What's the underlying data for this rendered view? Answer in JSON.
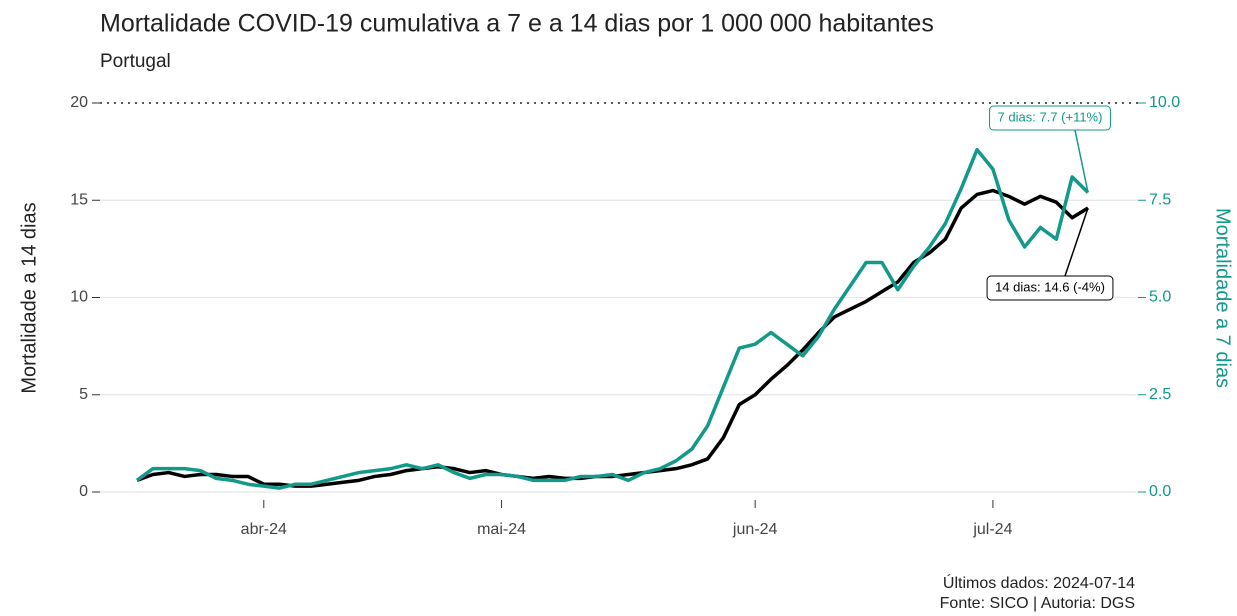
{
  "chart_data": {
    "type": "line",
    "title": "Mortalidade COVID-19 cumulativa a 7 e a 14 dias por 1 000 000 habitantes",
    "subtitle": "Portugal",
    "ylabel": "Mortalidade a 14 dias",
    "y2label": "Mortalidade a 7 dias",
    "categories": [
      null,
      null,
      null,
      null,
      null,
      null,
      null,
      null,
      "abr-24",
      null,
      null,
      null,
      null,
      null,
      null,
      null,
      null,
      null,
      null,
      null,
      null,
      null,
      null,
      "mai-24",
      null,
      null,
      null,
      null,
      null,
      null,
      null,
      null,
      null,
      null,
      null,
      null,
      null,
      null,
      null,
      "jun-24",
      null,
      null,
      null,
      null,
      null,
      null,
      null,
      null,
      null,
      null,
      null,
      null,
      null,
      null,
      "jul-24",
      null,
      null,
      null,
      null,
      null,
      null
    ],
    "series": [
      {
        "name": "14 dias",
        "color": "#000000",
        "axis": "y",
        "values": [
          0.6,
          0.9,
          1.0,
          0.8,
          0.9,
          0.9,
          0.8,
          0.8,
          0.4,
          0.4,
          0.3,
          0.3,
          0.4,
          0.5,
          0.6,
          0.8,
          0.9,
          1.1,
          1.2,
          1.3,
          1.2,
          1.0,
          1.1,
          0.9,
          0.8,
          0.7,
          0.8,
          0.7,
          0.7,
          0.8,
          0.8,
          0.9,
          1.0,
          1.1,
          1.2,
          1.4,
          1.7,
          2.8,
          4.5,
          5.0,
          5.8,
          6.5,
          7.3,
          8.2,
          9.0,
          9.4,
          9.8,
          10.3,
          10.8,
          11.8,
          12.3,
          13.0,
          14.6,
          15.3,
          15.5,
          15.2,
          14.8,
          15.2,
          14.9,
          14.1,
          14.6
        ]
      },
      {
        "name": "7 dias",
        "color": "#12998a",
        "axis": "y2",
        "values": [
          0.3,
          0.6,
          0.6,
          0.6,
          0.55,
          0.35,
          0.3,
          0.2,
          0.15,
          0.1,
          0.2,
          0.2,
          0.3,
          0.4,
          0.5,
          0.55,
          0.6,
          0.7,
          0.6,
          0.7,
          0.5,
          0.35,
          0.45,
          0.45,
          0.4,
          0.3,
          0.3,
          0.3,
          0.4,
          0.4,
          0.45,
          0.3,
          0.5,
          0.6,
          0.8,
          1.1,
          1.7,
          2.7,
          3.7,
          3.8,
          4.1,
          3.8,
          3.5,
          4.0,
          4.7,
          5.3,
          5.9,
          5.9,
          5.2,
          5.8,
          6.3,
          6.9,
          7.8,
          8.8,
          8.3,
          7.0,
          6.3,
          6.8,
          6.5,
          8.1,
          7.7
        ]
      }
    ],
    "ylim": [
      0,
      20
    ],
    "yticks": [
      0,
      5,
      10,
      15,
      20
    ],
    "y2lim": [
      0,
      10
    ],
    "y2ticks": [
      {
        "value": 0,
        "label": "0.0"
      },
      {
        "value": 2.5,
        "label": "2.5"
      },
      {
        "value": 5,
        "label": "5.0"
      },
      {
        "value": 7.5,
        "label": "7.5"
      },
      {
        "value": 10,
        "label": "10.0"
      }
    ],
    "grid": true,
    "annotations": [
      "14 dias: 14.6 (-4%)",
      "7 dias: 7.7 (+11%)"
    ],
    "footer": [
      "Últimos dados: 2024-07-14",
      "Fonte: SICO | Autoria: DGS"
    ]
  }
}
